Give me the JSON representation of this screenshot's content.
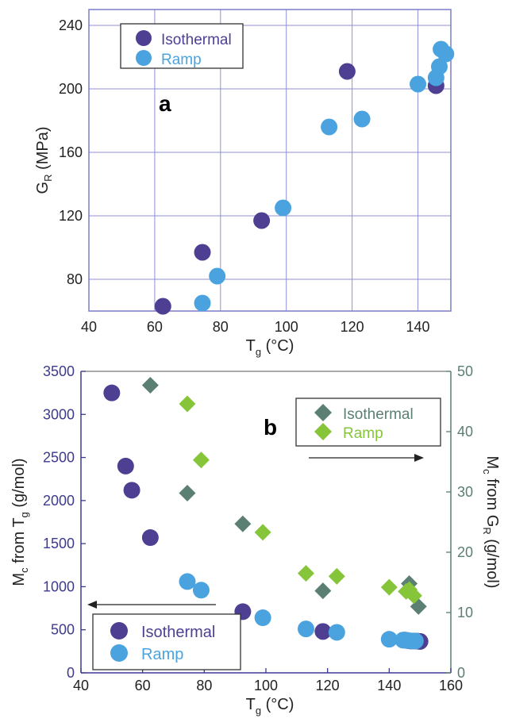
{
  "colors": {
    "isothermal_circle": "#4f3f92",
    "ramp_circle": "#4aa3df",
    "isothermal_diamond": "#5b7f72",
    "ramp_diamond": "#86c53a",
    "left_axis": "#3d3a8f",
    "right_axis": "#5a7f6f",
    "grid": "#8f8fd6"
  },
  "chart_data": [
    {
      "type": "scatter",
      "panel_label": "a",
      "xlabel": "T",
      "xlabel_sub": "g",
      "xlabel_unit": " (°C)",
      "ylabel": "G",
      "ylabel_sub": "R",
      "ylabel_unit": " (MPa)",
      "xlim": [
        40,
        150
      ],
      "ylim": [
        60,
        250
      ],
      "xticks": [
        "40",
        "60",
        "80",
        "100",
        "120",
        "140"
      ],
      "yticks": [
        "80",
        "120",
        "160",
        "200",
        "240"
      ],
      "grid": true,
      "legend_position": "top-left",
      "series": [
        {
          "name": "Isothermal",
          "marker": "circle",
          "points": [
            [
              62.5,
              63
            ],
            [
              74.5,
              97
            ],
            [
              92.5,
              117
            ],
            [
              118.5,
              211
            ],
            [
              145.5,
              202
            ]
          ]
        },
        {
          "name": "Ramp",
          "marker": "circle",
          "points": [
            [
              74.5,
              65
            ],
            [
              79,
              82
            ],
            [
              99,
              125
            ],
            [
              113,
              176
            ],
            [
              123,
              181
            ],
            [
              140,
              203
            ],
            [
              145.5,
              207
            ],
            [
              146.5,
              214
            ],
            [
              147,
              225
            ],
            [
              148.5,
              222
            ]
          ]
        }
      ]
    },
    {
      "type": "scatter",
      "panel_label": "b",
      "xlabel": "T",
      "xlabel_sub": "g",
      "xlabel_unit": " (°C)",
      "ylabel_left": "M",
      "ylabel_left_sub1": "c",
      "ylabel_left_mid": " from T",
      "ylabel_left_sub2": "g",
      "ylabel_left_unit": " (g/mol)",
      "ylabel_right": "M",
      "ylabel_right_sub1": "c",
      "ylabel_right_mid": " from G",
      "ylabel_right_sub2": "R",
      "ylabel_right_unit": " (g/mol)",
      "xlim": [
        40,
        160
      ],
      "ylim_left": [
        0,
        3500
      ],
      "ylim_right": [
        0,
        50
      ],
      "xticks": [
        "40",
        "60",
        "80",
        "100",
        "120",
        "140",
        "160"
      ],
      "yticks_left": [
        "0",
        "500",
        "1000",
        "1500",
        "2000",
        "2500",
        "3000",
        "3500"
      ],
      "yticks_right": [
        "0",
        "10",
        "20",
        "30",
        "40",
        "50"
      ],
      "grid": false,
      "legend_left_position": "bottom-left",
      "legend_right_position": "top-right",
      "series": [
        {
          "name": "Isothermal",
          "marker": "circle",
          "axis": "left",
          "points": [
            [
              50,
              3250
            ],
            [
              54.5,
              2400
            ],
            [
              56.5,
              2120
            ],
            [
              62.5,
              1570
            ],
            [
              92.5,
              710
            ],
            [
              118.5,
              480
            ],
            [
              145,
              380
            ],
            [
              146,
              375
            ],
            [
              147,
              370
            ],
            [
              148,
              370
            ],
            [
              149,
              368
            ],
            [
              150,
              365
            ]
          ]
        },
        {
          "name": "Ramp",
          "marker": "circle",
          "axis": "left",
          "points": [
            [
              74.5,
              1060
            ],
            [
              79,
              960
            ],
            [
              99,
              640
            ],
            [
              113,
              510
            ],
            [
              123,
              470
            ],
            [
              140,
              390
            ],
            [
              144.5,
              380
            ],
            [
              146,
              375
            ],
            [
              147.5,
              370
            ],
            [
              148.5,
              370
            ]
          ]
        },
        {
          "name": "Isothermal",
          "marker": "diamond",
          "axis": "right",
          "points": [
            [
              62.5,
              47.7
            ],
            [
              74.5,
              29.8
            ],
            [
              92.5,
              24.7
            ],
            [
              118.5,
              13.6
            ],
            [
              146.5,
              14.8
            ],
            [
              149.5,
              11.0
            ]
          ]
        },
        {
          "name": "Ramp",
          "marker": "diamond",
          "axis": "right",
          "points": [
            [
              74.5,
              44.6
            ],
            [
              79,
              35.3
            ],
            [
              99,
              23.3
            ],
            [
              113,
              16.5
            ],
            [
              123,
              16.0
            ],
            [
              140,
              14.2
            ],
            [
              145.5,
              13.5
            ],
            [
              146.5,
              13.8
            ],
            [
              148,
              12.8
            ]
          ]
        }
      ]
    }
  ]
}
